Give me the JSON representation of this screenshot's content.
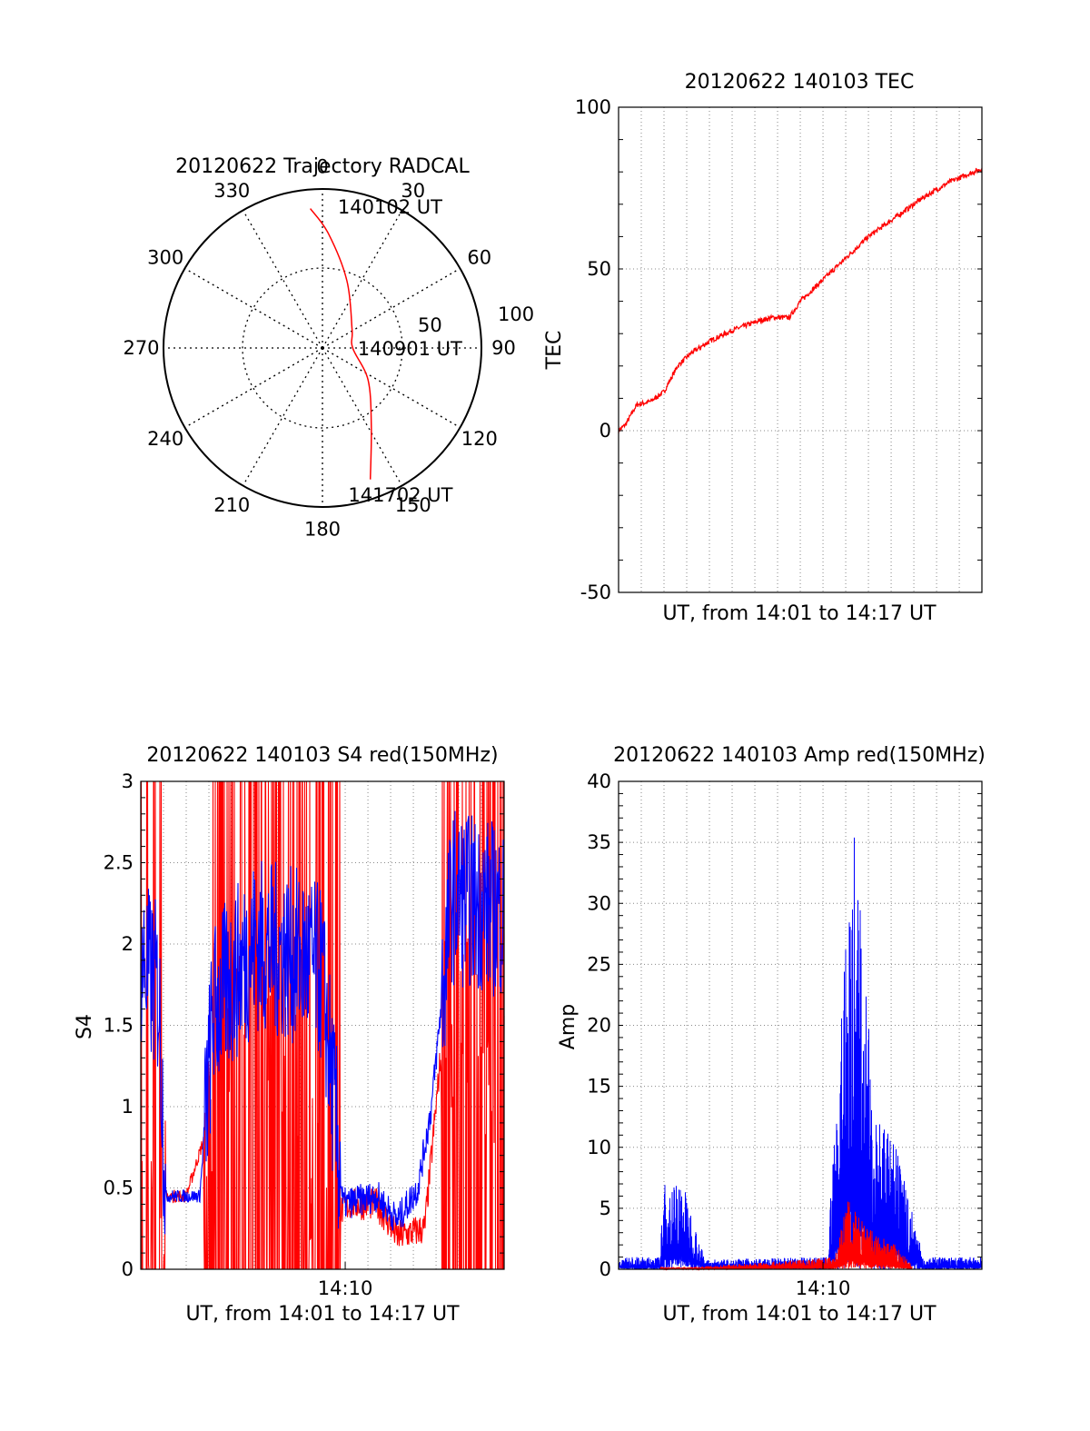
{
  "chart_data": [
    {
      "type": "polar-trajectory",
      "title": "20120622 Trajectory RADCAL",
      "angles": [
        "0",
        "30",
        "60",
        "90",
        "120",
        "150",
        "180",
        "210",
        "240",
        "270",
        "300",
        "330"
      ],
      "radial_ticks": [
        "50",
        "100"
      ],
      "rmax": 100,
      "grid": true,
      "color": "#ff0000",
      "track": [
        {
          "az": 355,
          "r": 88
        },
        {
          "az": 3,
          "r": 72
        },
        {
          "az": 20,
          "r": 45
        },
        {
          "az": 58,
          "r": 22
        },
        {
          "az": 90,
          "r": 19
        },
        {
          "az": 125,
          "r": 35
        },
        {
          "az": 148,
          "r": 58
        },
        {
          "az": 160,
          "r": 88
        }
      ],
      "annotations": [
        {
          "text": "140102 UT",
          "az": 20,
          "r": 95
        },
        {
          "text": "140901 UT",
          "az": 90,
          "r": 45
        },
        {
          "text": "141702 UT",
          "az": 157,
          "r": 100
        }
      ]
    },
    {
      "type": "line",
      "title": "20120622 140103 TEC",
      "xlabel": "UT, from 14:01 to 14:17 UT",
      "ylabel": "TEC",
      "ylim": [
        -50,
        100
      ],
      "yticks": [
        "-50",
        "0",
        "50",
        "100"
      ],
      "xlim": [
        14.0167,
        14.2833
      ],
      "grid": true,
      "series": [
        {
          "color": "#ff0000",
          "points": [
            [
              14.0167,
              0
            ],
            [
              14.022,
              2
            ],
            [
              14.03,
              8
            ],
            [
              14.04,
              9
            ],
            [
              14.05,
              12
            ],
            [
              14.06,
              20
            ],
            [
              14.07,
              24
            ],
            [
              14.085,
              28
            ],
            [
              14.1,
              31
            ],
            [
              14.12,
              34
            ],
            [
              14.13,
              35
            ],
            [
              14.142,
              35
            ],
            [
              14.15,
              40
            ],
            [
              14.16,
              44
            ],
            [
              14.18,
              52
            ],
            [
              14.2,
              60
            ],
            [
              14.22,
              66
            ],
            [
              14.24,
              72
            ],
            [
              14.26,
              77
            ],
            [
              14.2833,
              81
            ]
          ]
        }
      ]
    },
    {
      "type": "line",
      "title": "20120622 140103 S4 red(150MHz)",
      "xlabel": "UT, from 14:01 to 14:17 UT",
      "ylabel": "S4",
      "ylim": [
        0,
        3
      ],
      "yticks": [
        "0",
        "0.5",
        "1",
        "1.5",
        "2",
        "2.5",
        "3"
      ],
      "xlim": [
        14.0167,
        14.2833
      ],
      "xticks": [
        {
          "value": 14.1667,
          "label": "14:10"
        }
      ],
      "grid": true,
      "series": [
        {
          "color": "#ff0000",
          "points": [
            [
              14.035,
              0.45
            ],
            [
              14.05,
              0.45
            ],
            [
              14.1,
              1.8
            ],
            [
              14.155,
              0.3
            ],
            [
              14.17,
              0.4
            ],
            [
              14.19,
              0.4
            ],
            [
              14.205,
              0.2
            ],
            [
              14.225,
              0.25
            ],
            [
              14.24,
              1.6
            ],
            [
              14.2833,
              1.3
            ]
          ]
        },
        {
          "color": "#0000ff",
          "points": [
            [
              14.0167,
              1.9
            ],
            [
              14.03,
              1.7
            ],
            [
              14.035,
              0.45
            ],
            [
              14.06,
              0.45
            ],
            [
              14.07,
              1.6
            ],
            [
              14.1,
              2.0
            ],
            [
              14.14,
              1.9
            ],
            [
              14.15,
              1.8
            ],
            [
              14.165,
              0.4
            ],
            [
              14.19,
              0.45
            ],
            [
              14.205,
              0.3
            ],
            [
              14.22,
              0.5
            ],
            [
              14.23,
              1.0
            ],
            [
              14.245,
              2.3
            ],
            [
              14.2833,
              2.2
            ]
          ]
        }
      ]
    },
    {
      "type": "line",
      "title": "20120622 140103 Amp red(150MHz)",
      "xlabel": "UT, from 14:01 to 14:17 UT",
      "ylabel": "Amp",
      "ylim": [
        0,
        40
      ],
      "yticks": [
        "0",
        "5",
        "10",
        "15",
        "20",
        "25",
        "30",
        "35",
        "40"
      ],
      "xlim": [
        14.0167,
        14.2833
      ],
      "xticks": [
        {
          "value": 14.1667,
          "label": "14:10"
        }
      ],
      "grid": true,
      "series": [
        {
          "color": "#0000ff",
          "points": [
            [
              14.0167,
              1
            ],
            [
              14.047,
              1
            ],
            [
              14.05,
              7
            ],
            [
              14.063,
              7.5
            ],
            [
              14.08,
              0.8
            ],
            [
              14.17,
              1
            ],
            [
              14.175,
              12
            ],
            [
              14.185,
              30
            ],
            [
              14.19,
              38
            ],
            [
              14.2,
              20
            ],
            [
              14.21,
              12
            ],
            [
              14.22,
              10
            ],
            [
              14.232,
              5
            ],
            [
              14.24,
              1
            ],
            [
              14.2833,
              1
            ]
          ]
        },
        {
          "color": "#ff0000",
          "points": [
            [
              14.047,
              0.2
            ],
            [
              14.075,
              0.2
            ],
            [
              14.175,
              1
            ],
            [
              14.185,
              6
            ],
            [
              14.195,
              4
            ],
            [
              14.205,
              3
            ],
            [
              14.22,
              2
            ],
            [
              14.232,
              0.3
            ]
          ]
        }
      ]
    }
  ]
}
